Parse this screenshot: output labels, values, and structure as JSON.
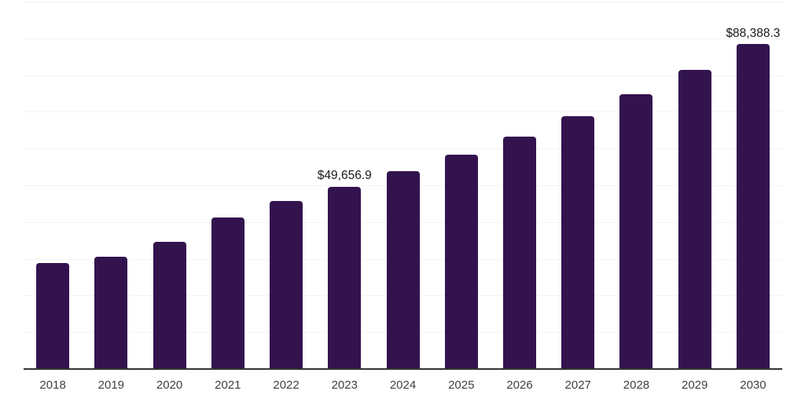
{
  "chart_data": {
    "type": "bar",
    "title": "",
    "xlabel": "",
    "ylabel": "",
    "categories": [
      "2018",
      "2019",
      "2020",
      "2021",
      "2022",
      "2023",
      "2024",
      "2025",
      "2026",
      "2027",
      "2028",
      "2029",
      "2030"
    ],
    "values": [
      28800,
      30500,
      34650,
      41200,
      45800,
      49656.9,
      53900,
      58300,
      63200,
      68800,
      74800,
      81400,
      88388.3
    ],
    "value_unit_prefix": "$",
    "labeled_points": [
      {
        "category": "2023",
        "label": "$49,656.9"
      },
      {
        "category": "2030",
        "label": "$88,388.3"
      }
    ],
    "ylim": [
      0,
      100000
    ],
    "gridline_step": 10000,
    "grid": "horizontal gridlines on, no y-axis tick labels",
    "legend": "none",
    "colors": {
      "bar": "#33134E",
      "gridline": "#F3F3F3",
      "axis_line": "#333333",
      "value_label": "#1A1A1A",
      "tick_label": "#404040",
      "background": "#FFFFFF"
    }
  }
}
